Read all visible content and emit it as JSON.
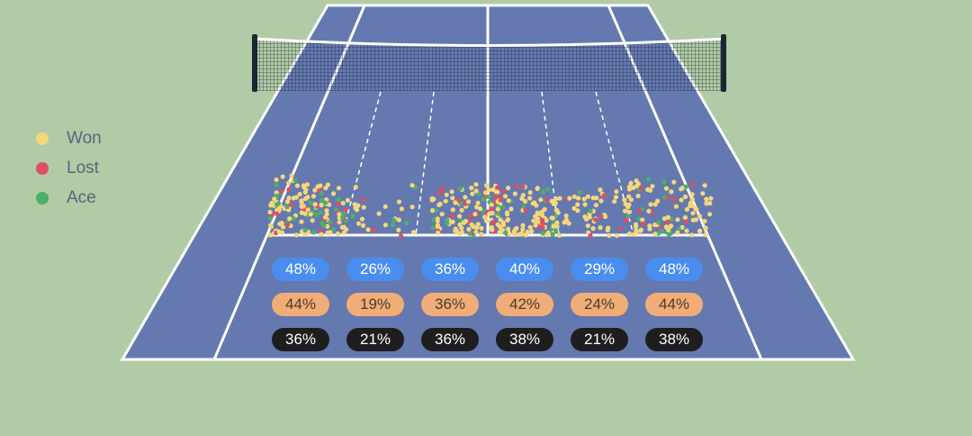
{
  "chart_data": {
    "type": "scatter",
    "legend": [
      {
        "name": "Won",
        "color": "#f5d77a"
      },
      {
        "name": "Lost",
        "color": "#e04e62"
      },
      {
        "name": "Ace",
        "color": "#4db068"
      }
    ],
    "zones": [
      {
        "blue": "48%",
        "orange": "44%",
        "black": "36%"
      },
      {
        "blue": "26%",
        "orange": "19%",
        "black": "21%"
      },
      {
        "blue": "36%",
        "orange": "36%",
        "black": "36%"
      },
      {
        "blue": "40%",
        "orange": "42%",
        "black": "38%"
      },
      {
        "blue": "29%",
        "orange": "24%",
        "black": "21%"
      },
      {
        "blue": "48%",
        "orange": "44%",
        "black": "38%"
      }
    ],
    "colors": {
      "background": "#b0cba5",
      "court": "#6479b0",
      "lines": "#ffffff",
      "net": "#1c2533"
    }
  }
}
